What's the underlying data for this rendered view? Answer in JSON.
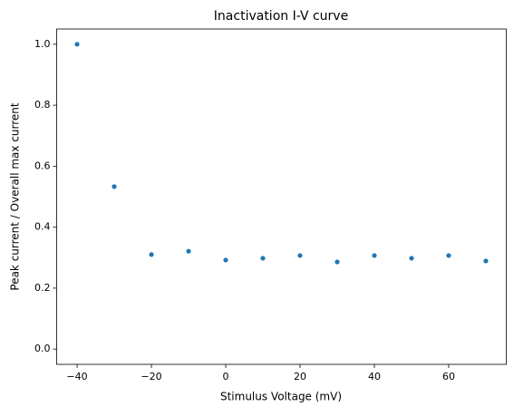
{
  "chart_data": {
    "type": "scatter",
    "title": "Inactivation I-V curve",
    "x_label": "Stimulus Voltage (mV)",
    "y_label": "Peak current / Overall max current",
    "x": [
      -40,
      -30,
      -20,
      -10,
      0,
      10,
      20,
      30,
      40,
      50,
      60,
      70
    ],
    "series": [
      {
        "color": "#1f77b4",
        "values": [
          1.0,
          0.533,
          0.31,
          0.321,
          0.292,
          0.298,
          0.307,
          0.286,
          0.307,
          0.298,
          0.307,
          0.289
        ]
      }
    ],
    "xlim": [
      -45.5,
      75.5
    ],
    "xticks": [
      {
        "value": -40,
        "label": "−40"
      },
      {
        "value": -20,
        "label": "−20"
      },
      0,
      20,
      40,
      60
    ],
    "ylim": [
      -0.05,
      1.05
    ],
    "yticks": [
      {
        "value": 0,
        "label": "0.0"
      },
      0.2,
      0.4,
      0.6,
      0.8,
      {
        "value": 1,
        "label": "1.0"
      }
    ],
    "grid": false
  }
}
